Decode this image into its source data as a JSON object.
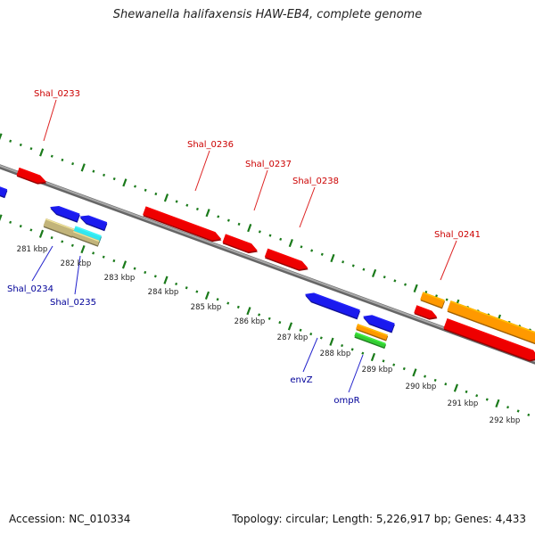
{
  "title": "Shewanella halifaxensis HAW-EB4, complete genome",
  "footer": {
    "accession": "Accession: NC_010334",
    "summary": "Topology: circular; Length: 5,226,917 bp; Genes: 4,433"
  },
  "colors": {
    "forward_gene": "#ee0000",
    "reverse_gene": "#1a1aee",
    "forward_label": "#cc0000",
    "reverse_label": "#000099",
    "scale_tick": "#1a7a1a",
    "genome_line": "#888888",
    "orange_feature": "#ff9900",
    "tan_feature": "#c2b47a",
    "cyan_feature": "#33e6f0",
    "green_feature": "#33cc33"
  },
  "ruler": {
    "unit": "kbp",
    "labels": [
      "281 kbp",
      "282 kbp",
      "283 kbp",
      "284 kbp",
      "285 kbp",
      "286 kbp",
      "287 kbp",
      "288 kbp",
      "289 kbp",
      "290 kbp",
      "291 kbp",
      "292 kbp"
    ]
  },
  "gene_labels": {
    "forward": [
      "Shal_0233",
      "Shal_0236",
      "Shal_0237",
      "Shal_0238",
      "Shal_0241"
    ],
    "reverse": [
      "Shal_0234",
      "Shal_0235",
      "envZ",
      "ompR"
    ]
  }
}
